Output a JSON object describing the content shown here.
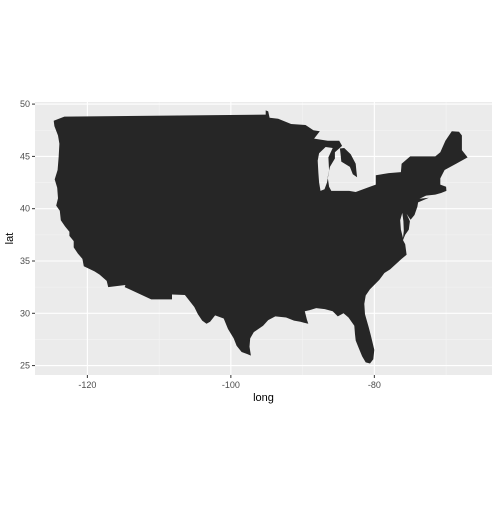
{
  "chart_data": {
    "type": "map",
    "title": "",
    "xlabel": "long",
    "ylabel": "lat",
    "xlim": [
      -127.3,
      -63.6
    ],
    "ylim": [
      24.1,
      50.2
    ],
    "x_ticks": [
      -120,
      -100,
      -80
    ],
    "x_tick_labels": [
      "-120",
      "-100",
      "-80"
    ],
    "y_ticks": [
      25,
      30,
      35,
      40,
      45,
      50
    ],
    "y_tick_labels": [
      "25",
      "30",
      "35",
      "40",
      "45",
      "50"
    ],
    "grid": true,
    "legend": "none",
    "colors": {
      "panel_background": "#ebebeb",
      "grid_major": "#ffffff",
      "grid_minor": "#f5f5f5",
      "region_fill": "#262626",
      "tick_text": "#4d4d4d",
      "tick_mark": "#333333",
      "axis_title": "#000000"
    },
    "region_name": "contiguous-united-states",
    "outline": [
      [
        -124.7,
        48.4
      ],
      [
        -123.2,
        48.8
      ],
      [
        -95.15,
        49.0
      ],
      [
        -95.15,
        49.4
      ],
      [
        -94.8,
        49.3
      ],
      [
        -94.6,
        48.7
      ],
      [
        -93.4,
        48.6
      ],
      [
        -91.6,
        48.1
      ],
      [
        -89.6,
        48.0
      ],
      [
        -88.5,
        47.5
      ],
      [
        -87.6,
        47.4
      ],
      [
        -88.4,
        46.7
      ],
      [
        -86.5,
        46.5
      ],
      [
        -84.9,
        46.5
      ],
      [
        -84.5,
        46.0
      ],
      [
        -85.5,
        45.4
      ],
      [
        -85.5,
        44.8
      ],
      [
        -86.2,
        44.0
      ],
      [
        -86.5,
        43.0
      ],
      [
        -86.3,
        42.1
      ],
      [
        -86.0,
        41.7
      ],
      [
        -84.8,
        41.7
      ],
      [
        -83.5,
        41.7
      ],
      [
        -82.6,
        41.6
      ],
      [
        -81.0,
        42.0
      ],
      [
        -79.8,
        42.3
      ],
      [
        -79.8,
        43.2
      ],
      [
        -78.0,
        43.4
      ],
      [
        -76.3,
        43.5
      ],
      [
        -76.2,
        44.3
      ],
      [
        -75.0,
        45.0
      ],
      [
        -71.5,
        45.0
      ],
      [
        -70.8,
        45.4
      ],
      [
        -70.1,
        46.5
      ],
      [
        -69.2,
        47.4
      ],
      [
        -68.2,
        47.35
      ],
      [
        -67.8,
        47.0
      ],
      [
        -67.8,
        45.6
      ],
      [
        -67.0,
        44.9
      ],
      [
        -68.6,
        44.3
      ],
      [
        -70.2,
        43.7
      ],
      [
        -70.8,
        42.9
      ],
      [
        -70.8,
        42.3
      ],
      [
        -70.0,
        42.1
      ],
      [
        -69.95,
        41.7
      ],
      [
        -70.7,
        41.5
      ],
      [
        -71.5,
        41.35
      ],
      [
        -72.8,
        41.25
      ],
      [
        -73.7,
        40.95
      ],
      [
        -72.4,
        41.05
      ],
      [
        -73.9,
        40.6
      ],
      [
        -74.0,
        40.2
      ],
      [
        -74.4,
        39.4
      ],
      [
        -74.95,
        38.95
      ],
      [
        -75.5,
        39.5
      ],
      [
        -75.05,
        38.8
      ],
      [
        -75.2,
        38.0
      ],
      [
        -75.7,
        37.5
      ],
      [
        -76.0,
        37.0
      ],
      [
        -75.7,
        36.6
      ],
      [
        -75.5,
        35.6
      ],
      [
        -76.2,
        35.2
      ],
      [
        -77.8,
        34.2
      ],
      [
        -78.6,
        33.85
      ],
      [
        -79.3,
        33.2
      ],
      [
        -80.6,
        32.3
      ],
      [
        -81.2,
        31.7
      ],
      [
        -81.4,
        30.9
      ],
      [
        -81.3,
        29.9
      ],
      [
        -80.8,
        28.7
      ],
      [
        -80.5,
        27.9
      ],
      [
        -80.0,
        26.5
      ],
      [
        -80.15,
        25.6
      ],
      [
        -80.6,
        25.2
      ],
      [
        -81.2,
        25.3
      ],
      [
        -81.7,
        25.9
      ],
      [
        -82.2,
        26.7
      ],
      [
        -82.6,
        27.4
      ],
      [
        -82.7,
        28.0
      ],
      [
        -82.8,
        28.8
      ],
      [
        -83.6,
        29.6
      ],
      [
        -84.3,
        30.0
      ],
      [
        -85.1,
        29.7
      ],
      [
        -85.8,
        30.2
      ],
      [
        -86.9,
        30.4
      ],
      [
        -88.1,
        30.5
      ],
      [
        -89.0,
        30.3
      ],
      [
        -89.7,
        30.2
      ],
      [
        -89.4,
        29.4
      ],
      [
        -89.2,
        29.0
      ],
      [
        -89.8,
        29.1
      ],
      [
        -90.3,
        29.2
      ],
      [
        -91.2,
        29.3
      ],
      [
        -92.3,
        29.6
      ],
      [
        -93.8,
        29.7
      ],
      [
        -94.8,
        29.35
      ],
      [
        -95.5,
        28.8
      ],
      [
        -96.8,
        28.2
      ],
      [
        -97.3,
        27.6
      ],
      [
        -97.4,
        26.8
      ],
      [
        -97.2,
        25.95
      ],
      [
        -97.7,
        26.1
      ],
      [
        -98.5,
        26.3
      ],
      [
        -99.2,
        26.9
      ],
      [
        -99.6,
        27.6
      ],
      [
        -100.4,
        28.5
      ],
      [
        -101.0,
        29.5
      ],
      [
        -102.2,
        29.8
      ],
      [
        -102.9,
        29.2
      ],
      [
        -103.4,
        29.0
      ],
      [
        -104.0,
        29.3
      ],
      [
        -104.6,
        29.9
      ],
      [
        -105.1,
        30.6
      ],
      [
        -106.4,
        31.75
      ],
      [
        -108.2,
        31.8
      ],
      [
        -108.2,
        31.33
      ],
      [
        -111.1,
        31.33
      ],
      [
        -114.8,
        32.5
      ],
      [
        -114.7,
        32.7
      ],
      [
        -117.1,
        32.5
      ],
      [
        -117.3,
        33.1
      ],
      [
        -118.3,
        33.7
      ],
      [
        -119.0,
        34.0
      ],
      [
        -120.5,
        34.5
      ],
      [
        -120.7,
        35.2
      ],
      [
        -121.3,
        35.7
      ],
      [
        -121.9,
        36.3
      ],
      [
        -121.9,
        36.9
      ],
      [
        -122.5,
        37.4
      ],
      [
        -122.5,
        37.8
      ],
      [
        -123.1,
        38.3
      ],
      [
        -123.7,
        38.9
      ],
      [
        -123.85,
        39.8
      ],
      [
        -124.35,
        40.3
      ],
      [
        -124.1,
        41.0
      ],
      [
        -124.2,
        42.0
      ],
      [
        -124.55,
        42.8
      ],
      [
        -124.15,
        43.7
      ],
      [
        -124.0,
        45.0
      ],
      [
        -123.9,
        46.2
      ],
      [
        -124.1,
        47.0
      ],
      [
        -124.6,
        47.9
      ]
    ],
    "lakes": [
      [
        [
          -84.8,
          45.75
        ],
        [
          -84.7,
          45.2
        ],
        [
          -84.6,
          44.5
        ],
        [
          -83.4,
          44.0
        ],
        [
          -83.0,
          43.3
        ],
        [
          -82.4,
          43.0
        ],
        [
          -82.5,
          43.6
        ],
        [
          -82.6,
          44.3
        ],
        [
          -83.3,
          45.2
        ],
        [
          -84.2,
          45.8
        ]
      ],
      [
        [
          -87.9,
          44.6
        ],
        [
          -87.8,
          43.4
        ],
        [
          -87.7,
          42.5
        ],
        [
          -87.5,
          41.7
        ],
        [
          -86.95,
          41.85
        ],
        [
          -86.6,
          42.5
        ],
        [
          -86.3,
          43.6
        ],
        [
          -86.4,
          44.9
        ],
        [
          -85.8,
          45.8
        ],
        [
          -86.8,
          45.9
        ],
        [
          -87.7,
          45.3
        ]
      ]
    ],
    "holes": [
      [
        [
          -76.1,
          39.6
        ],
        [
          -76.4,
          38.9
        ],
        [
          -76.3,
          38.0
        ],
        [
          -76.0,
          37.2
        ],
        [
          -75.9,
          37.9
        ],
        [
          -75.95,
          38.8
        ]
      ]
    ]
  }
}
